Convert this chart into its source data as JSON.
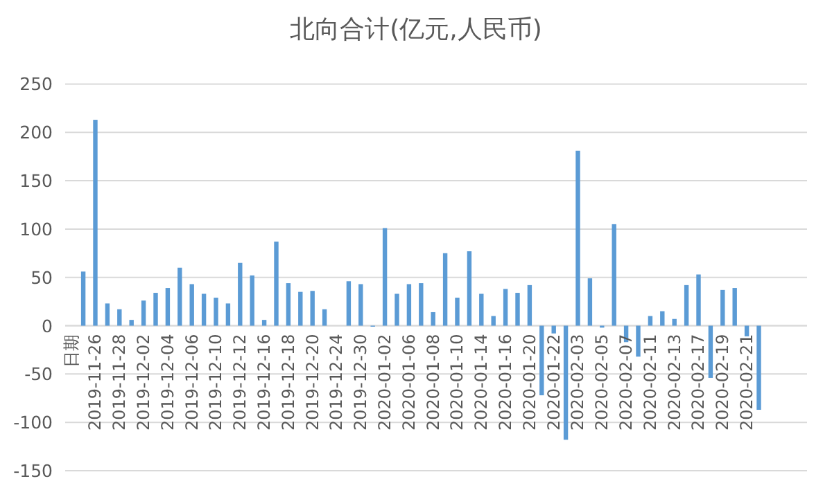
{
  "chart_data": {
    "type": "bar",
    "title": "北向合计(亿元,人民币)",
    "categories": [
      "日期",
      null,
      "2019-11-26",
      null,
      "2019-11-28",
      null,
      "2019-12-02",
      null,
      "2019-12-04",
      null,
      "2019-12-06",
      null,
      "2019-12-10",
      null,
      "2019-12-12",
      null,
      "2019-12-16",
      null,
      "2019-12-18",
      null,
      "2019-12-20",
      null,
      "2019-12-24",
      null,
      "2019-12-30",
      null,
      "2020-01-02",
      null,
      "2020-01-06",
      null,
      "2020-01-08",
      null,
      "2020-01-10",
      null,
      "2020-01-14",
      null,
      "2020-01-16",
      null,
      "2020-01-20",
      null,
      "2020-01-22",
      null,
      "2020-02-03",
      null,
      "2020-02-05",
      null,
      "2020-02-07",
      null,
      "2020-02-11",
      null,
      "2020-02-13",
      null,
      "2020-02-17",
      null,
      "2020-02-19",
      null,
      "2020-02-21",
      null
    ],
    "values": [
      null,
      56,
      213,
      23,
      17,
      6,
      26,
      34,
      39,
      60,
      43,
      33,
      29,
      23,
      65,
      52,
      6,
      87,
      44,
      35,
      36,
      17,
      null,
      46,
      43,
      -1,
      101,
      33,
      43,
      44,
      14,
      75,
      29,
      77,
      33,
      10,
      38,
      34,
      42,
      -72,
      -8,
      -118,
      181,
      49,
      -2,
      105,
      -17,
      -32,
      10,
      15,
      7,
      42,
      53,
      -54,
      37,
      39,
      -11,
      -87
    ],
    "color": "#5b9bd5",
    "ylim": [
      -150,
      250
    ],
    "yticks": [
      -150,
      -100,
      -50,
      0,
      50,
      100,
      150,
      200,
      250
    ],
    "grid": "y"
  }
}
